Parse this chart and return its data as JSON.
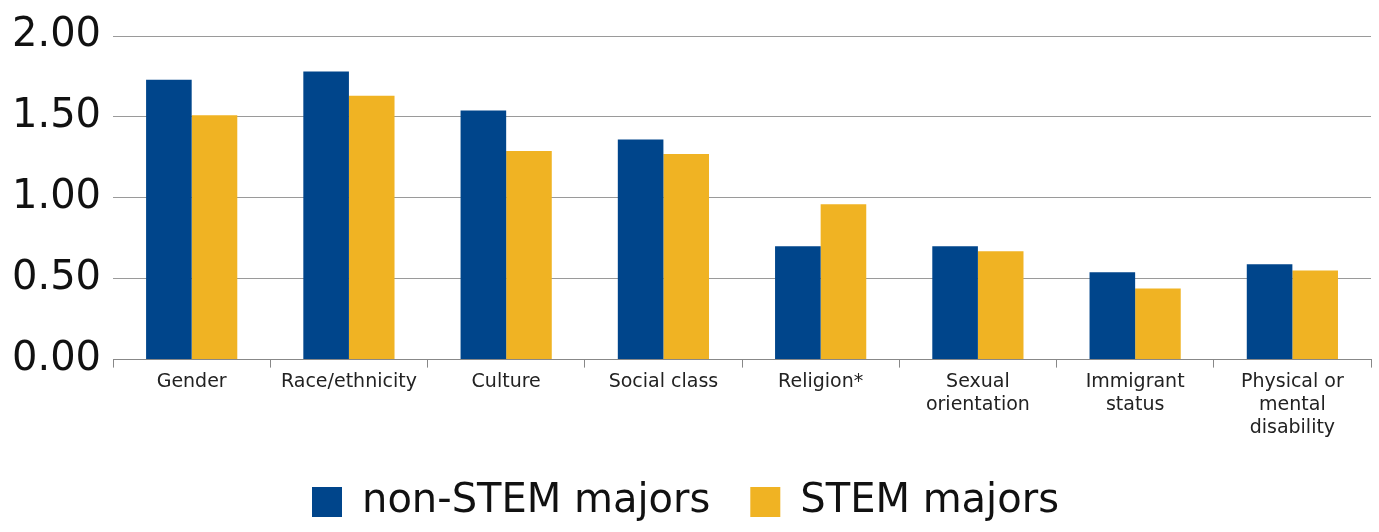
{
  "chart_data": {
    "type": "bar",
    "categories": [
      "Gender",
      "Race/ethnicity",
      "Culture",
      "Social class",
      "Religion*",
      "Sexual orientation",
      "Immigrant status",
      "Physical or mental disability"
    ],
    "series": [
      {
        "name": "non-STEM majors",
        "color": "#00458b",
        "values": [
          1.73,
          1.78,
          1.54,
          1.36,
          0.7,
          0.7,
          0.54,
          0.59
        ]
      },
      {
        "name": "STEM majors",
        "color": "#f0b323",
        "values": [
          1.51,
          1.63,
          1.29,
          1.27,
          0.96,
          0.67,
          0.44,
          0.55
        ]
      }
    ],
    "ylim": [
      0,
      2
    ],
    "yticks": [
      {
        "value": 0,
        "label": "0.00"
      },
      {
        "value": 0.5,
        "label": "0.50"
      },
      {
        "value": 1,
        "label": "1.00"
      },
      {
        "value": 1.5,
        "label": "1.50"
      },
      {
        "value": 2,
        "label": "2.00"
      }
    ],
    "grid": "y",
    "legend": "bottom"
  }
}
